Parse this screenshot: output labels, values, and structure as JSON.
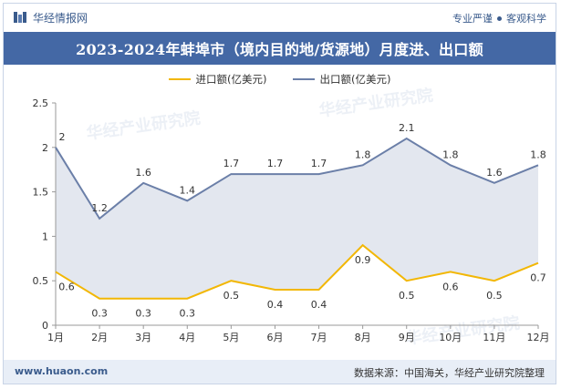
{
  "header": {
    "brand": "华经情报网",
    "tagline_left": "专业严谨",
    "tagline_right": "客观科学"
  },
  "title": "2023-2024年蚌埠市（境内目的地/货源地）月度进、出口额",
  "footer": {
    "url": "www.huaon.com",
    "source": "数据来源：中国海关，华经产业研究院整理"
  },
  "watermark": "华经产业研究院",
  "colors": {
    "import": "#f2b705",
    "export": "#6b7fa8",
    "fill": "#e3e7ef",
    "title_bg": "#4468a5"
  },
  "chart_data": {
    "type": "line",
    "categories": [
      "1月",
      "2月",
      "3月",
      "4月",
      "5月",
      "6月",
      "7月",
      "8月",
      "9月",
      "10月",
      "11月",
      "12月"
    ],
    "series": [
      {
        "name": "进口额(亿美元)",
        "values": [
          0.6,
          0.3,
          0.3,
          0.3,
          0.5,
          0.4,
          0.4,
          0.9,
          0.5,
          0.6,
          0.5,
          0.7
        ]
      },
      {
        "name": "出口额(亿美元)",
        "values": [
          2,
          1.2,
          1.6,
          1.4,
          1.7,
          1.7,
          1.7,
          1.8,
          2.1,
          1.8,
          1.6,
          1.8
        ]
      }
    ],
    "ylim": [
      0,
      2.5
    ],
    "yticks": [
      "0",
      "0.5",
      "1",
      "1.5",
      "2",
      "2.5"
    ],
    "grid": false,
    "legend": "top-center"
  }
}
